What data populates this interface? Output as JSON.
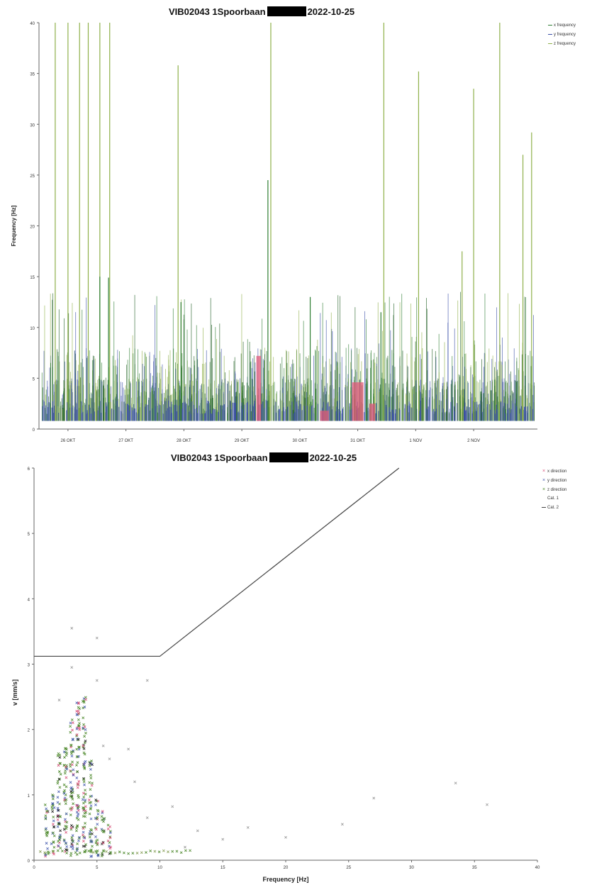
{
  "chart_data": [
    {
      "type": "line",
      "title_left": "VIB02043 1Spoorbaan",
      "title_right": "2022-10-25",
      "ylabel": "Frequency [Hz]",
      "xlabel": "",
      "ylim": [
        0,
        40
      ],
      "yticks": [
        "0",
        "5",
        "10",
        "15",
        "20",
        "25",
        "30",
        "35",
        "40"
      ],
      "xticks": [
        "26 OKT",
        "27 OKT",
        "28 OKT",
        "29 OKT",
        "30 OKT",
        "31 OKT",
        "1 NOV",
        "2 NOV"
      ],
      "legend": [
        "x frequency",
        "y frequency",
        "z frequency"
      ],
      "colors": {
        "x": "#2e7d32",
        "y": "#3b4fa8",
        "z": "#8fb04a",
        "hl": "#e05a7a"
      },
      "spikes_z": [
        {
          "day": 25.78,
          "f": 40
        },
        {
          "day": 26.0,
          "f": 40
        },
        {
          "day": 26.2,
          "f": 40
        },
        {
          "day": 26.35,
          "f": 40
        },
        {
          "day": 26.55,
          "f": 40
        },
        {
          "day": 26.72,
          "f": 40
        },
        {
          "day": 27.9,
          "f": 35.8
        },
        {
          "day": 29.5,
          "f": 40
        },
        {
          "day": 31.45,
          "f": 40
        },
        {
          "day": 32.05,
          "f": 35.2
        },
        {
          "day": 33.0,
          "f": 33.5
        },
        {
          "day": 33.45,
          "f": 40
        },
        {
          "day": 33.85,
          "f": 27.0
        },
        {
          "day": 34.0,
          "f": 29.2
        },
        {
          "day": 32.8,
          "f": 17.5
        }
      ],
      "spikes_x": [
        {
          "day": 26.55,
          "f": 15
        },
        {
          "day": 26.7,
          "f": 14.9
        },
        {
          "day": 29.45,
          "f": 24.5
        },
        {
          "day": 27.95,
          "f": 12.5
        },
        {
          "day": 30.18,
          "f": 13.0
        },
        {
          "day": 31.4,
          "f": 11.5
        }
      ],
      "pink_ranges": [
        {
          "from": 30.35,
          "to": 30.5,
          "f": 1.8
        },
        {
          "from": 30.9,
          "to": 31.1,
          "f": 4.6
        },
        {
          "from": 31.2,
          "to": 31.3,
          "f": 2.5
        },
        {
          "from": 29.25,
          "to": 29.33,
          "f": 7.2
        }
      ]
    },
    {
      "type": "scatter",
      "title_left": "VIB02043 1Spoorbaan",
      "title_right": "2022-10-25",
      "xlabel": "Frequency [Hz]",
      "ylabel": "v [mm/s]",
      "xlim": [
        0,
        40
      ],
      "ylim": [
        0,
        6
      ],
      "xticks": [
        "0",
        "5",
        "10",
        "15",
        "20",
        "25",
        "30",
        "35",
        "40"
      ],
      "yticks": [
        "0",
        "1",
        "2",
        "3",
        "4",
        "5",
        "6"
      ],
      "legend": [
        "x direction",
        "y direction",
        "z direction",
        "Cat. 1",
        "Cat. 2"
      ],
      "colors": {
        "x": "#d8527a",
        "y": "#4a5fb0",
        "z": "#4f8a2e",
        "line": "#444444"
      },
      "cat2_line": [
        [
          0,
          3.12
        ],
        [
          10,
          3.12
        ],
        [
          29,
          6.0
        ]
      ],
      "dense_columns": [
        {
          "f": 1.0,
          "vmax": 0.8
        },
        {
          "f": 1.5,
          "vmax": 0.95
        },
        {
          "f": 2.0,
          "vmax": 1.6
        },
        {
          "f": 2.5,
          "vmax": 1.75
        },
        {
          "f": 3.0,
          "vmax": 2.1
        },
        {
          "f": 3.5,
          "vmax": 2.4
        },
        {
          "f": 4.0,
          "vmax": 2.5
        },
        {
          "f": 4.5,
          "vmax": 1.5
        },
        {
          "f": 5.0,
          "vmax": 0.9
        },
        {
          "f": 5.5,
          "vmax": 0.7
        },
        {
          "f": 6.0,
          "vmax": 0.5
        }
      ],
      "outliers": [
        {
          "f": 3.0,
          "v": 3.55
        },
        {
          "f": 5.0,
          "v": 3.4
        },
        {
          "f": 3.0,
          "v": 2.95
        },
        {
          "f": 5.0,
          "v": 2.75
        },
        {
          "f": 9.0,
          "v": 2.75
        },
        {
          "f": 2.0,
          "v": 2.45
        },
        {
          "f": 7.5,
          "v": 1.7
        },
        {
          "f": 6.0,
          "v": 1.55
        },
        {
          "f": 5.5,
          "v": 1.75
        },
        {
          "f": 8.0,
          "v": 1.2
        },
        {
          "f": 11.0,
          "v": 0.82
        },
        {
          "f": 15.0,
          "v": 0.32
        },
        {
          "f": 13.0,
          "v": 0.45
        },
        {
          "f": 17.0,
          "v": 0.5
        },
        {
          "f": 20.0,
          "v": 0.35
        },
        {
          "f": 24.5,
          "v": 0.55
        },
        {
          "f": 27.0,
          "v": 0.95
        },
        {
          "f": 33.5,
          "v": 1.18
        },
        {
          "f": 36.0,
          "v": 0.85
        },
        {
          "f": 9.0,
          "v": 0.65
        },
        {
          "f": 12.0,
          "v": 0.2
        }
      ],
      "baseline_band": {
        "from": 0.5,
        "to": 12.5,
        "v": 0.1
      }
    }
  ]
}
